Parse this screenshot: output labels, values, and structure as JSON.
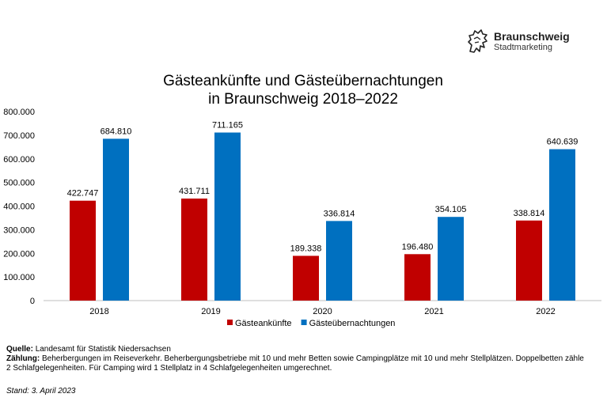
{
  "branding": {
    "name": "Braunschweig",
    "subtitle": "Stadtmarketing",
    "logo_icon": "lion-icon"
  },
  "chart_data": {
    "type": "bar",
    "title": [
      "Gästeankünfte und Gästeübernachtungen",
      "in Braunschweig 2018–2022"
    ],
    "categories": [
      "2018",
      "2019",
      "2020",
      "2021",
      "2022"
    ],
    "series": [
      {
        "name": "Gästeankünfte",
        "color": "#C00000",
        "values": [
          422747,
          431711,
          189338,
          196480,
          338814
        ],
        "labels": [
          "422.747",
          "431.711",
          "189.338",
          "196.480",
          "338.814"
        ]
      },
      {
        "name": "Gästeübernachtungen",
        "color": "#0070C0",
        "values": [
          684810,
          711165,
          336814,
          354105,
          640639
        ],
        "labels": [
          "684.810",
          "711.165",
          "336.814",
          "354.105",
          "640.639"
        ]
      }
    ],
    "ylim": [
      0,
      800000
    ],
    "yticks": [
      0,
      100000,
      200000,
      300000,
      400000,
      500000,
      600000,
      700000,
      800000
    ],
    "ytick_labels": [
      "0",
      "100.000",
      "200.000",
      "300.000",
      "400.000",
      "500.000",
      "600.000",
      "700.000",
      "800.000"
    ],
    "xlabel": "",
    "ylabel": "",
    "grid": false,
    "legend_position": "bottom"
  },
  "footer": {
    "source_label": "Quelle:",
    "source_text": "Landesamt für Statistik Niedersachsen",
    "count_label": "Zählung:",
    "count_text_1": "Beherbergungen im Reiseverkehr. Beherbergungsbetriebe mit 10 und mehr Betten sowie Campingplätze mit 10 und mehr Stellplätzen. Doppelbetten zähle",
    "count_text_2": "2 Schlafgelegenheiten. Für Camping wird 1 Stellplatz in 4 Schlafgelegenheiten umgerechnet.",
    "stand": "Stand: 3. April 2023"
  }
}
